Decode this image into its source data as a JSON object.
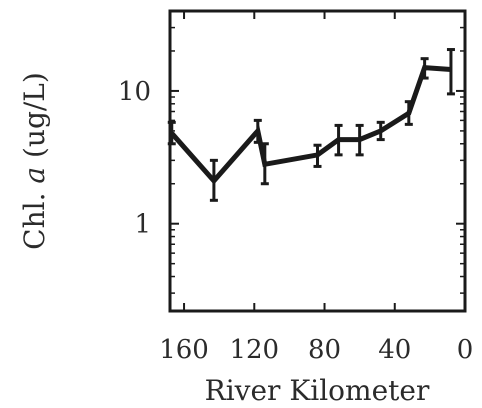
{
  "chart_data": {
    "type": "line",
    "title": "",
    "xlabel": "River Kilometer",
    "ylabel": {
      "prefix": "Chl. ",
      "italic": "a",
      "suffix": " (ug/L)"
    },
    "x_reversed": true,
    "xlim": [
      168,
      0
    ],
    "xticks": [
      160,
      120,
      80,
      40,
      0
    ],
    "y_scale": "log",
    "ylim": [
      0.22,
      40
    ],
    "yticks": [
      1,
      10
    ],
    "grid": false,
    "series": [
      {
        "x": [
          167,
          143,
          118,
          114,
          84,
          72,
          60,
          48,
          32,
          23,
          8
        ],
        "y": [
          4.8,
          2.1,
          5.0,
          2.8,
          3.3,
          4.3,
          4.3,
          5.0,
          6.8,
          15.0,
          14.5
        ],
        "err_low": [
          0.8,
          0.6,
          0.9,
          0.8,
          0.6,
          1.0,
          1.0,
          0.7,
          1.2,
          2.5,
          5.0
        ],
        "err_high": [
          1.0,
          0.9,
          1.0,
          1.2,
          0.6,
          1.2,
          1.2,
          0.8,
          1.5,
          2.5,
          6.0
        ]
      }
    ]
  }
}
